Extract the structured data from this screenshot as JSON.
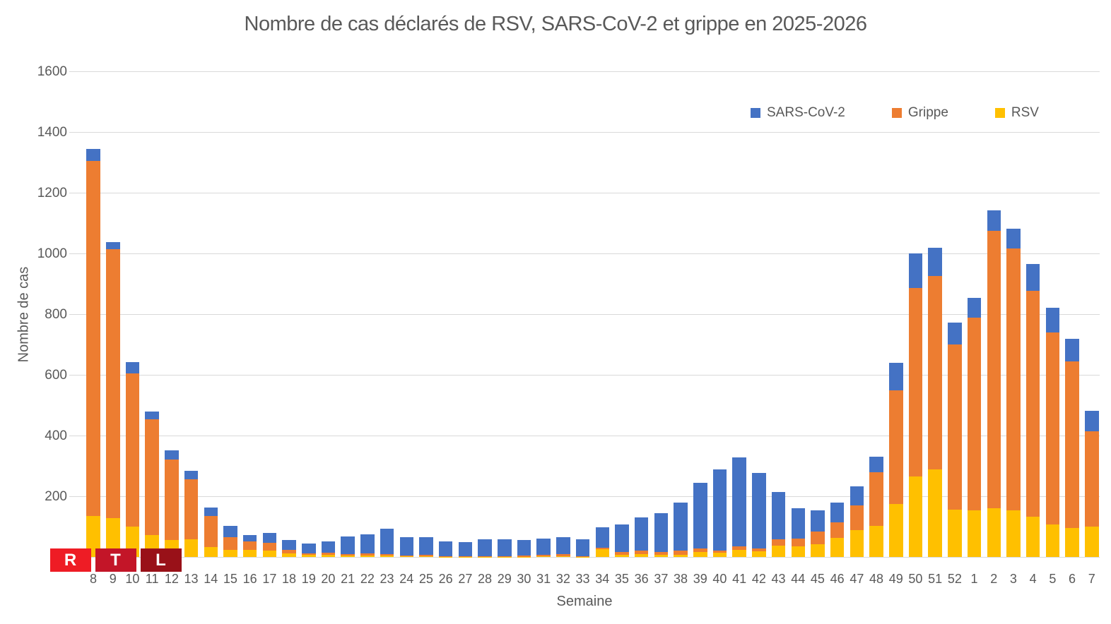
{
  "title": "Nombre de cas déclarés de RSV, SARS-CoV-2 et grippe en 2025-2026",
  "legend": {
    "items": [
      {
        "label": "SARS-CoV-2",
        "color": "#4472C4"
      },
      {
        "label": "Grippe",
        "color": "#ED7D31"
      },
      {
        "label": "RSV",
        "color": "#FFC000"
      }
    ]
  },
  "y_axis": {
    "title": "Nombre de cas",
    "ticks": [
      200,
      400,
      600,
      800,
      1000,
      1200,
      1400,
      1600
    ]
  },
  "x_axis": {
    "title": "Semaine"
  },
  "logo": {
    "blocks": [
      {
        "letter": "R",
        "color": "#EE1C25"
      },
      {
        "letter": "T",
        "color": "#C31528"
      },
      {
        "letter": "L",
        "color": "#991118"
      }
    ]
  },
  "chart_data": {
    "type": "bar",
    "stacked": true,
    "title": "Nombre de cas déclarés de RSV, SARS-CoV-2 et grippe en 2025-2026",
    "xlabel": "Semaine",
    "ylabel": "Nombre de cas",
    "ylim": [
      0,
      1600
    ],
    "y_tick_step": 200,
    "grid": true,
    "legend_position": "top-right",
    "legend_order": [
      "SARS-CoV-2",
      "Grippe",
      "RSV"
    ],
    "categories": [
      "8",
      "9",
      "10",
      "11",
      "12",
      "13",
      "14",
      "15",
      "16",
      "17",
      "18",
      "19",
      "20",
      "21",
      "22",
      "23",
      "24",
      "25",
      "26",
      "27",
      "28",
      "29",
      "30",
      "31",
      "32",
      "33",
      "34",
      "35",
      "36",
      "37",
      "38",
      "39",
      "40",
      "41",
      "42",
      "43",
      "44",
      "45",
      "46",
      "47",
      "48",
      "49",
      "50",
      "51",
      "52",
      "1",
      "2",
      "3",
      "4",
      "5",
      "6",
      "7"
    ],
    "series": [
      {
        "name": "RSV",
        "color": "#FFC000",
        "values": [
          135,
          128,
          100,
          72,
          56,
          58,
          32,
          23,
          23,
          21,
          11,
          7,
          8,
          4,
          5,
          4,
          2,
          3,
          1,
          1,
          1,
          1,
          1,
          2,
          3,
          1,
          26,
          6,
          9,
          6,
          8,
          16,
          14,
          24,
          18,
          37,
          36,
          41,
          62,
          88,
          102,
          175,
          264,
          289,
          156,
          153,
          161,
          153,
          132,
          106,
          96,
          99
        ]
      },
      {
        "name": "Grippe",
        "color": "#ED7D31",
        "values": [
          1170,
          885,
          505,
          382,
          265,
          197,
          103,
          43,
          28,
          26,
          12,
          5,
          5,
          5,
          6,
          5,
          3,
          3,
          2,
          2,
          1,
          2,
          3,
          4,
          7,
          2,
          5,
          10,
          13,
          10,
          12,
          13,
          8,
          11,
          9,
          20,
          25,
          42,
          53,
          81,
          177,
          374,
          623,
          637,
          544,
          636,
          913,
          863,
          745,
          634,
          549,
          316
        ]
      },
      {
        "name": "SARS-CoV-2",
        "color": "#4472C4",
        "values": [
          40,
          25,
          38,
          25,
          31,
          28,
          27,
          37,
          22,
          32,
          33,
          32,
          38,
          58,
          64,
          84,
          60,
          58,
          49,
          45,
          57,
          55,
          51,
          55,
          56,
          55,
          66,
          91,
          109,
          129,
          160,
          216,
          266,
          293,
          250,
          157,
          99,
          70,
          65,
          64,
          52,
          90,
          113,
          93,
          72,
          64,
          69,
          66,
          87,
          80,
          73,
          67
        ]
      }
    ]
  }
}
